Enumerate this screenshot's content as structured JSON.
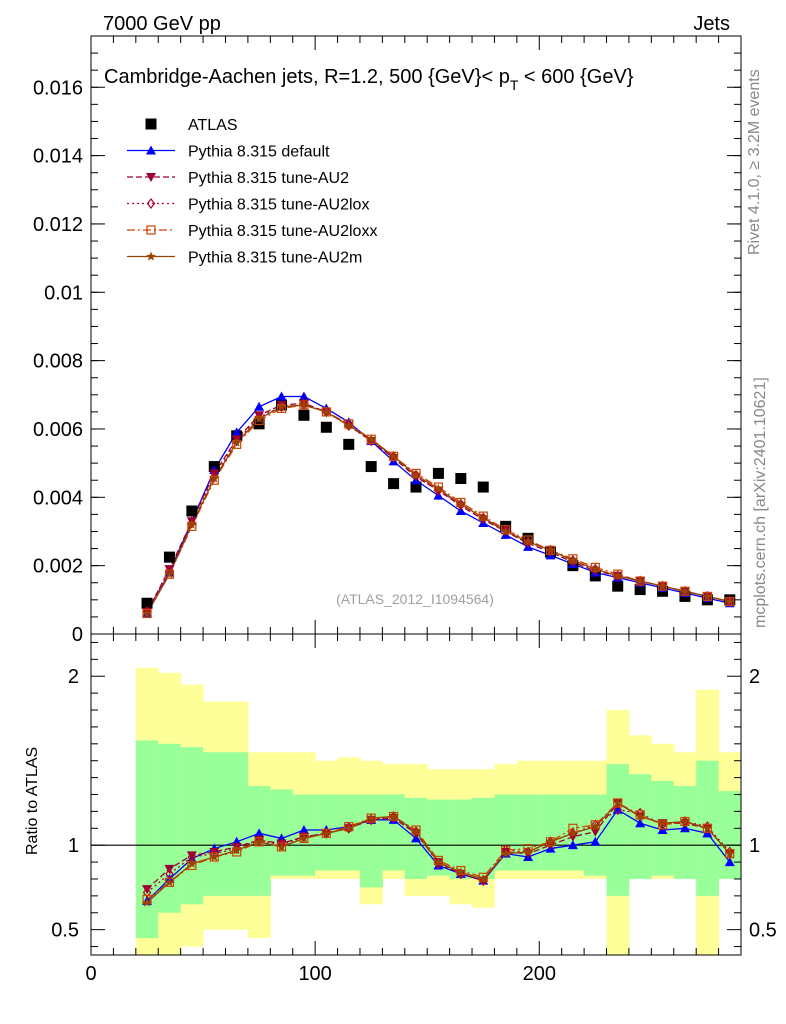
{
  "header": {
    "left": "7000 GeV pp",
    "right": "Jets"
  },
  "side_labels": {
    "rivet": "Rivet 4.1.0, ≥ 3.2M events",
    "mcplots": "mcplots.cern.ch [arXiv:2401.10621]"
  },
  "colors": {
    "atlas": "#000000",
    "default": "#0000ff",
    "au2": "#990033",
    "au2lox": "#b30033",
    "au2loxx": "#cc4400",
    "au2m": "#994400",
    "band_outer": "#ffff99",
    "band_inner": "#99ff99"
  },
  "chart_data": [
    {
      "id": "main",
      "type": "line",
      "title_prefix": "Cambridge-Aachen jets, R=1.2, 500 {GeV}< p",
      "title_sub": "T",
      "title_suffix": " < 600 {GeV}",
      "watermark": "(ATLAS_2012_I1094564)",
      "xlim": [
        0,
        290
      ],
      "ylim": [
        0,
        0.0175
      ],
      "y_ticks": [
        0,
        0.002,
        0.004,
        0.006,
        0.008,
        0.01,
        0.012,
        0.014,
        0.016
      ],
      "y_tick_labels": [
        "0",
        "0.002",
        "0.004",
        "0.006",
        "0.008",
        "0.01",
        "0.012",
        "0.014",
        "0.016"
      ],
      "x": [
        25,
        35,
        45,
        55,
        65,
        75,
        85,
        95,
        105,
        115,
        125,
        135,
        145,
        155,
        165,
        175,
        185,
        195,
        205,
        215,
        225,
        235,
        245,
        255,
        265,
        275,
        285
      ],
      "series": [
        {
          "name": "ATLAS",
          "marker": "square",
          "color_key": "atlas",
          "values": [
            0.0009,
            0.00225,
            0.0036,
            0.0049,
            0.0058,
            0.00615,
            0.0067,
            0.0064,
            0.00605,
            0.00555,
            0.0049,
            0.0044,
            0.0043,
            0.0047,
            0.00455,
            0.0043,
            0.00315,
            0.0028,
            0.0024,
            0.002,
            0.0017,
            0.0014,
            0.0013,
            0.00125,
            0.0011,
            0.001,
            0.001
          ]
        },
        {
          "name": "Pythia 8.315 default",
          "marker": "triangle-up",
          "dash": "solid",
          "color_key": "default",
          "values": [
            0.0006,
            0.0018,
            0.0033,
            0.0048,
            0.0059,
            0.00665,
            0.00695,
            0.00695,
            0.0066,
            0.0062,
            0.00565,
            0.00505,
            0.0045,
            0.00405,
            0.0036,
            0.00325,
            0.0029,
            0.00255,
            0.0023,
            0.00205,
            0.0018,
            0.00165,
            0.0015,
            0.00135,
            0.0012,
            0.00105,
            0.0009
          ]
        },
        {
          "name": "Pythia 8.315 tune-AU2",
          "marker": "triangle-down",
          "dash": "6,3",
          "color_key": "au2",
          "values": [
            0.00065,
            0.0019,
            0.0033,
            0.0047,
            0.0057,
            0.0064,
            0.0067,
            0.00675,
            0.0065,
            0.0061,
            0.00565,
            0.00515,
            0.0046,
            0.0042,
            0.00375,
            0.00335,
            0.003,
            0.00265,
            0.0024,
            0.0021,
            0.00185,
            0.0017,
            0.00155,
            0.0014,
            0.00125,
            0.0011,
            0.00095
          ]
        },
        {
          "name": "Pythia 8.315 tune-AU2lox",
          "marker": "diamond-open",
          "dash": "2,3",
          "color_key": "au2lox",
          "values": [
            0.00065,
            0.00185,
            0.00325,
            0.0046,
            0.00565,
            0.00635,
            0.00665,
            0.0067,
            0.0065,
            0.0061,
            0.00565,
            0.0052,
            0.00465,
            0.0042,
            0.0038,
            0.0034,
            0.00305,
            0.0027,
            0.00245,
            0.00215,
            0.0019,
            0.0017,
            0.00155,
            0.0014,
            0.00125,
            0.0011,
            0.00095
          ]
        },
        {
          "name": "Pythia 8.315 tune-AU2loxx",
          "marker": "square-open",
          "dash": "8,3,2,3",
          "color_key": "au2loxx",
          "values": [
            0.0006,
            0.00175,
            0.00315,
            0.0045,
            0.00555,
            0.00625,
            0.0066,
            0.0067,
            0.0065,
            0.00615,
            0.0057,
            0.0052,
            0.0047,
            0.0043,
            0.00385,
            0.00345,
            0.00305,
            0.00275,
            0.00245,
            0.0022,
            0.00195,
            0.00175,
            0.00155,
            0.0014,
            0.00125,
            0.0011,
            0.00095
          ]
        },
        {
          "name": "Pythia 8.315 tune-AU2m",
          "marker": "star",
          "dash": "solid",
          "color_key": "au2m",
          "values": [
            0.0006,
            0.00175,
            0.0032,
            0.00455,
            0.0056,
            0.0063,
            0.00665,
            0.0067,
            0.0065,
            0.0061,
            0.0057,
            0.0052,
            0.00465,
            0.00425,
            0.0038,
            0.0034,
            0.003,
            0.0027,
            0.00245,
            0.00215,
            0.0019,
            0.0017,
            0.00155,
            0.0014,
            0.00125,
            0.0011,
            0.00095
          ]
        }
      ]
    },
    {
      "id": "ratio",
      "type": "line",
      "ylabel": "Ratio to ATLAS",
      "xlim": [
        0,
        290
      ],
      "ylim": [
        0.35,
        2.25
      ],
      "y_ticks": [
        0.5,
        1,
        2
      ],
      "y_tick_labels": [
        "0.5",
        "1",
        "2"
      ],
      "x_ticks": [
        0,
        100,
        200
      ],
      "x_tick_labels": [
        "0",
        "100",
        "200"
      ],
      "x": [
        25,
        35,
        45,
        55,
        65,
        75,
        85,
        95,
        105,
        115,
        125,
        135,
        145,
        155,
        165,
        175,
        185,
        195,
        205,
        215,
        225,
        235,
        245,
        255,
        265,
        275,
        285
      ],
      "bin_edges": [
        20,
        30,
        40,
        50,
        60,
        70,
        80,
        90,
        100,
        110,
        120,
        130,
        140,
        150,
        160,
        170,
        180,
        190,
        200,
        210,
        220,
        230,
        240,
        250,
        260,
        270,
        280,
        290
      ],
      "band_outer": {
        "lo": [
          0.35,
          0.35,
          0.4,
          0.5,
          0.5,
          0.45,
          0.8,
          0.8,
          0.8,
          0.8,
          0.65,
          0.8,
          0.7,
          0.7,
          0.65,
          0.63,
          0.8,
          0.8,
          0.8,
          0.8,
          0.8,
          0.35,
          0.8,
          0.8,
          0.8,
          0.35,
          0.8
        ],
        "hi": [
          2.05,
          2.02,
          1.95,
          1.85,
          1.85,
          1.55,
          1.55,
          1.55,
          1.5,
          1.52,
          1.5,
          1.48,
          1.48,
          1.45,
          1.45,
          1.45,
          1.48,
          1.5,
          1.5,
          1.5,
          1.5,
          1.8,
          1.65,
          1.6,
          1.55,
          1.92,
          1.55
        ]
      },
      "band_inner": {
        "lo": [
          0.45,
          0.6,
          0.65,
          0.7,
          0.7,
          0.7,
          0.82,
          0.82,
          0.85,
          0.85,
          0.75,
          0.85,
          0.8,
          0.82,
          0.8,
          0.8,
          0.85,
          0.85,
          0.85,
          0.85,
          0.82,
          0.7,
          0.8,
          0.82,
          0.8,
          0.7,
          0.8
        ],
        "hi": [
          1.62,
          1.6,
          1.58,
          1.55,
          1.55,
          1.35,
          1.33,
          1.3,
          1.3,
          1.3,
          1.3,
          1.3,
          1.28,
          1.27,
          1.27,
          1.28,
          1.3,
          1.3,
          1.3,
          1.3,
          1.3,
          1.48,
          1.42,
          1.38,
          1.35,
          1.5,
          1.32
        ]
      },
      "series": [
        {
          "name": "Pythia 8.315 default",
          "marker": "triangle-up",
          "dash": "solid",
          "color_key": "default",
          "values": [
            0.67,
            0.8,
            0.92,
            0.98,
            1.02,
            1.07,
            1.04,
            1.09,
            1.09,
            1.11,
            1.15,
            1.15,
            1.04,
            0.88,
            0.83,
            0.79,
            0.95,
            0.93,
            0.98,
            1.0,
            1.02,
            1.21,
            1.13,
            1.09,
            1.1,
            1.07,
            0.9
          ]
        },
        {
          "name": "Pythia 8.315 tune-AU2",
          "marker": "triangle-down",
          "dash": "6,3",
          "color_key": "au2",
          "values": [
            0.74,
            0.86,
            0.94,
            0.96,
            0.99,
            1.03,
            1.01,
            1.05,
            1.07,
            1.1,
            1.15,
            1.16,
            1.07,
            0.9,
            0.83,
            0.79,
            0.96,
            0.95,
            1.0,
            1.05,
            1.08,
            1.25,
            1.17,
            1.13,
            1.13,
            1.1,
            0.95
          ]
        },
        {
          "name": "Pythia 8.315 tune-AU2lox",
          "marker": "diamond-open",
          "dash": "2,3",
          "color_key": "au2lox",
          "values": [
            0.72,
            0.83,
            0.93,
            0.95,
            0.98,
            1.03,
            1.0,
            1.05,
            1.07,
            1.1,
            1.15,
            1.17,
            1.08,
            0.89,
            0.83,
            0.79,
            0.97,
            0.96,
            1.02,
            1.07,
            1.12,
            1.21,
            1.19,
            1.12,
            1.14,
            1.11,
            0.96
          ]
        },
        {
          "name": "Pythia 8.315 tune-AU2loxx",
          "marker": "square-open",
          "dash": "8,3,2,3",
          "color_key": "au2loxx",
          "values": [
            0.68,
            0.78,
            0.88,
            0.93,
            0.96,
            1.02,
            0.99,
            1.04,
            1.07,
            1.11,
            1.16,
            1.17,
            1.09,
            0.91,
            0.85,
            0.81,
            0.97,
            0.98,
            1.02,
            1.1,
            1.12,
            1.25,
            1.18,
            1.12,
            1.14,
            1.1,
            0.95
          ]
        },
        {
          "name": "Pythia 8.315 tune-AU2m",
          "marker": "star",
          "dash": "solid",
          "color_key": "au2m",
          "values": [
            0.66,
            0.78,
            0.89,
            0.93,
            0.97,
            1.02,
            0.99,
            1.04,
            1.07,
            1.1,
            1.16,
            1.17,
            1.08,
            0.9,
            0.84,
            0.8,
            0.95,
            0.96,
            1.02,
            1.07,
            1.11,
            1.25,
            1.17,
            1.13,
            1.14,
            1.1,
            0.95
          ]
        }
      ]
    }
  ]
}
